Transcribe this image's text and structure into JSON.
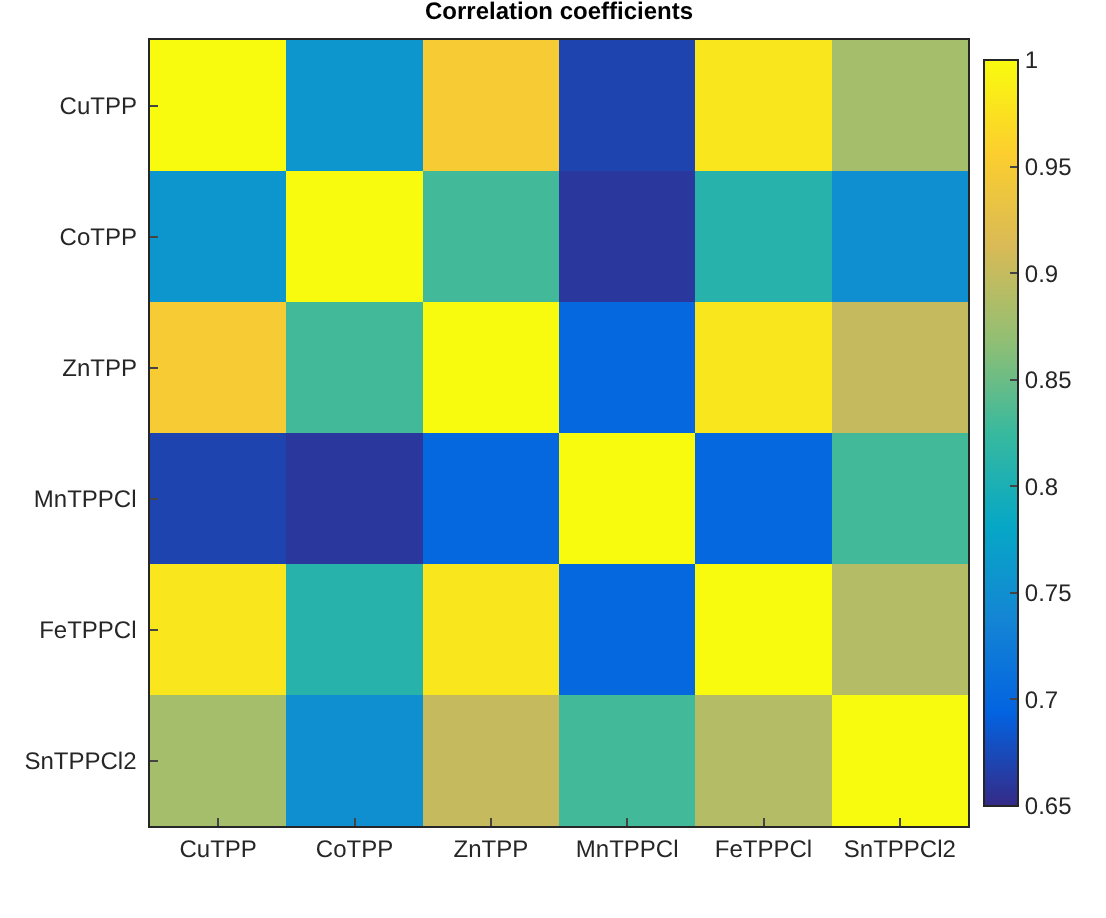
{
  "chart_data": {
    "type": "heatmap",
    "title": "Correlation coefficients",
    "categories": [
      "CuTPP",
      "CoTPP",
      "ZnTPP",
      "MnTPPCl",
      "FeTPPCl",
      "SnTPPCl2"
    ],
    "y_categories": [
      "CuTPP",
      "CoTPP",
      "ZnTPP",
      "MnTPPCl",
      "FeTPPCl",
      "SnTPPCl2"
    ],
    "cells": [
      [
        1,
        0.76,
        0.95,
        0.67,
        0.98,
        0.88
      ],
      [
        0.76,
        1,
        0.83,
        0.66,
        0.81,
        0.75
      ],
      [
        0.95,
        0.83,
        1,
        0.7,
        0.98,
        0.9
      ],
      [
        0.67,
        0.66,
        0.7,
        1,
        0.7,
        0.83
      ],
      [
        0.98,
        0.81,
        0.98,
        0.7,
        1,
        0.89
      ],
      [
        0.88,
        0.75,
        0.9,
        0.83,
        0.89,
        1
      ]
    ],
    "clim": [
      0.65,
      1
    ],
    "cticks": [
      0.65,
      0.7,
      0.75,
      0.8,
      0.85,
      0.9,
      0.95,
      1
    ]
  }
}
